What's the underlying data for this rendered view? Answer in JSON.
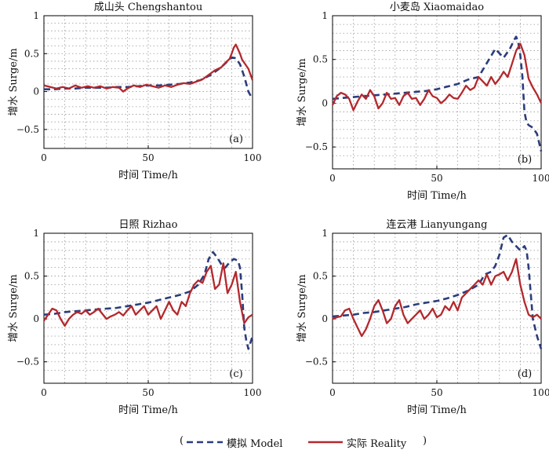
{
  "legend": {
    "open": "(",
    "close": ")",
    "model_label": "模拟 Model",
    "reality_label": "实际 Reality",
    "model_color": "#2b3d7c",
    "reality_color": "#b3282d"
  },
  "chart_data": [
    {
      "type": "line",
      "title": "成山头 Chengshantou",
      "panel_label": "(a)",
      "xlabel": "时间 Time/h",
      "ylabel": "增水 Surge/m",
      "xlim": [
        0,
        100
      ],
      "ylim": [
        -0.75,
        1.0
      ],
      "xticks": [
        0,
        50,
        100
      ],
      "yticks": [
        1,
        0.5,
        0,
        -0.5
      ],
      "ytick_labels": [
        "1",
        "0.5",
        "0",
        "−0.5"
      ],
      "series": [
        {
          "name": "模拟 Model",
          "x": [
            0,
            5,
            10,
            15,
            20,
            25,
            30,
            35,
            40,
            45,
            50,
            55,
            60,
            65,
            70,
            75,
            80,
            85,
            88,
            90,
            92,
            94,
            96,
            98,
            100
          ],
          "y": [
            0.03,
            0.03,
            0.04,
            0.04,
            0.05,
            0.05,
            0.05,
            0.06,
            0.06,
            0.07,
            0.08,
            0.08,
            0.09,
            0.1,
            0.12,
            0.15,
            0.22,
            0.32,
            0.4,
            0.45,
            0.44,
            0.36,
            0.2,
            0.0,
            -0.1
          ]
        },
        {
          "name": "实际 Reality",
          "x": [
            0,
            3,
            6,
            9,
            12,
            15,
            18,
            21,
            24,
            27,
            30,
            33,
            36,
            38,
            40,
            43,
            46,
            49,
            52,
            55,
            58,
            61,
            64,
            67,
            70,
            73,
            76,
            79,
            82,
            85,
            87,
            89,
            90,
            91,
            92,
            93,
            94,
            95,
            96,
            98,
            100
          ],
          "y": [
            0.08,
            0.06,
            0.04,
            0.06,
            0.04,
            0.08,
            0.05,
            0.07,
            0.05,
            0.07,
            0.04,
            0.06,
            0.05,
            0.0,
            0.04,
            0.08,
            0.06,
            0.09,
            0.07,
            0.05,
            0.08,
            0.06,
            0.09,
            0.11,
            0.1,
            0.13,
            0.16,
            0.22,
            0.28,
            0.32,
            0.38,
            0.43,
            0.5,
            0.58,
            0.62,
            0.56,
            0.5,
            0.42,
            0.38,
            0.3,
            0.15
          ]
        }
      ]
    },
    {
      "type": "line",
      "title": "小麦岛 Xiaomaidao",
      "panel_label": "(b)",
      "xlabel": "时间 Time/h",
      "ylabel": "增水 Surge/m",
      "xlim": [
        0,
        100
      ],
      "ylim": [
        -0.75,
        1.0
      ],
      "xticks": [
        0,
        50,
        100
      ],
      "yticks": [
        1,
        0.5,
        0,
        -0.5
      ],
      "ytick_labels": [
        "1",
        "0.5",
        "0",
        "−0.5"
      ],
      "series": [
        {
          "name": "模拟 Model",
          "x": [
            0,
            5,
            10,
            15,
            20,
            25,
            30,
            35,
            40,
            45,
            50,
            55,
            60,
            65,
            70,
            75,
            78,
            82,
            85,
            87,
            88,
            89,
            90,
            91,
            92,
            93,
            94,
            96,
            98,
            100
          ],
          "y": [
            0.05,
            0.06,
            0.07,
            0.08,
            0.09,
            0.1,
            0.11,
            0.12,
            0.13,
            0.14,
            0.16,
            0.19,
            0.22,
            0.27,
            0.3,
            0.5,
            0.62,
            0.52,
            0.62,
            0.72,
            0.76,
            0.7,
            0.55,
            0.3,
            -0.1,
            -0.22,
            -0.25,
            -0.28,
            -0.35,
            -0.55
          ]
        },
        {
          "name": "实际 Reality",
          "x": [
            0,
            2,
            4,
            6,
            8,
            10,
            12,
            14,
            16,
            18,
            20,
            22,
            24,
            26,
            28,
            30,
            32,
            34,
            36,
            38,
            40,
            42,
            44,
            46,
            48,
            50,
            52,
            54,
            56,
            58,
            60,
            62,
            64,
            66,
            68,
            70,
            72,
            74,
            76,
            78,
            80,
            82,
            84,
            86,
            88,
            90,
            92,
            94,
            96,
            98,
            100
          ],
          "y": [
            -0.02,
            0.08,
            0.12,
            0.1,
            0.05,
            -0.08,
            0.02,
            0.1,
            0.05,
            0.15,
            0.08,
            -0.06,
            0.0,
            0.12,
            0.05,
            0.06,
            -0.02,
            0.08,
            0.12,
            0.05,
            0.06,
            -0.02,
            0.05,
            0.15,
            0.08,
            0.06,
            0.0,
            0.04,
            0.1,
            0.06,
            0.05,
            0.12,
            0.2,
            0.15,
            0.18,
            0.3,
            0.25,
            0.2,
            0.3,
            0.22,
            0.28,
            0.36,
            0.3,
            0.45,
            0.6,
            0.68,
            0.55,
            0.28,
            0.18,
            0.1,
            0.0
          ]
        }
      ]
    },
    {
      "type": "line",
      "title": "日照 Rizhao",
      "panel_label": "(c)",
      "xlabel": "时间 Time/h",
      "ylabel": "增水 Surge/m",
      "xlim": [
        0,
        100
      ],
      "ylim": [
        -0.75,
        1.0
      ],
      "xticks": [
        0,
        50,
        100
      ],
      "yticks": [
        1,
        0.5,
        0,
        -0.5
      ],
      "ytick_labels": [
        "1",
        "0.5",
        "0",
        "−0.5"
      ],
      "series": [
        {
          "name": "模拟 Model",
          "x": [
            0,
            5,
            10,
            15,
            20,
            25,
            30,
            35,
            40,
            45,
            50,
            55,
            60,
            65,
            70,
            74,
            77,
            79,
            81,
            83,
            85,
            87,
            89,
            91,
            93,
            94,
            95,
            96,
            97,
            98,
            100
          ],
          "y": [
            0.05,
            0.06,
            0.08,
            0.09,
            0.1,
            0.11,
            0.12,
            0.13,
            0.15,
            0.17,
            0.19,
            0.22,
            0.25,
            0.28,
            0.32,
            0.4,
            0.52,
            0.7,
            0.78,
            0.72,
            0.64,
            0.6,
            0.66,
            0.7,
            0.68,
            0.6,
            0.3,
            -0.1,
            -0.25,
            -0.35,
            -0.2
          ]
        },
        {
          "name": "实际 Reality",
          "x": [
            0,
            2,
            4,
            6,
            8,
            10,
            12,
            14,
            16,
            18,
            20,
            22,
            24,
            26,
            28,
            30,
            32,
            34,
            36,
            38,
            40,
            42,
            44,
            46,
            48,
            50,
            52,
            54,
            56,
            58,
            60,
            62,
            64,
            66,
            68,
            70,
            72,
            74,
            76,
            78,
            80,
            82,
            84,
            86,
            88,
            90,
            92,
            94,
            96,
            98,
            100
          ],
          "y": [
            -0.02,
            0.05,
            0.12,
            0.1,
            0.0,
            -0.08,
            0.0,
            0.05,
            0.08,
            0.06,
            0.1,
            0.05,
            0.08,
            0.12,
            0.06,
            0.0,
            0.03,
            0.05,
            0.08,
            0.04,
            0.1,
            0.15,
            0.05,
            0.1,
            0.15,
            0.05,
            0.1,
            0.15,
            0.0,
            0.1,
            0.2,
            0.1,
            0.05,
            0.2,
            0.15,
            0.3,
            0.4,
            0.45,
            0.42,
            0.55,
            0.62,
            0.35,
            0.4,
            0.65,
            0.3,
            0.4,
            0.55,
            0.2,
            -0.05,
            0.02,
            0.05
          ]
        }
      ]
    },
    {
      "type": "line",
      "title": "连云港 Lianyungang",
      "panel_label": "(d)",
      "xlabel": "时间 Time/h",
      "ylabel": "增水 Surge/m",
      "xlim": [
        0,
        100
      ],
      "ylim": [
        -0.75,
        1.0
      ],
      "xticks": [
        0,
        50,
        100
      ],
      "yticks": [
        1,
        0.5,
        0,
        -0.5
      ],
      "ytick_labels": [
        "1",
        "0.5",
        "0",
        "−0.5"
      ],
      "series": [
        {
          "name": "模拟 Model",
          "x": [
            0,
            5,
            10,
            15,
            20,
            25,
            30,
            35,
            40,
            45,
            50,
            55,
            60,
            65,
            70,
            73,
            76,
            78,
            80,
            82,
            84,
            86,
            88,
            90,
            92,
            93,
            94,
            95,
            96,
            98,
            100
          ],
          "y": [
            0.03,
            0.04,
            0.05,
            0.07,
            0.08,
            0.1,
            0.12,
            0.14,
            0.17,
            0.19,
            0.21,
            0.24,
            0.28,
            0.33,
            0.4,
            0.52,
            0.55,
            0.62,
            0.75,
            0.95,
            0.98,
            0.9,
            0.85,
            0.8,
            0.85,
            0.8,
            0.6,
            0.3,
            0.0,
            -0.2,
            -0.35
          ]
        },
        {
          "name": "实际 Reality",
          "x": [
            0,
            2,
            4,
            6,
            8,
            10,
            12,
            14,
            16,
            18,
            20,
            22,
            24,
            26,
            28,
            30,
            32,
            34,
            36,
            38,
            40,
            42,
            44,
            46,
            48,
            50,
            52,
            54,
            56,
            58,
            60,
            62,
            64,
            66,
            68,
            70,
            72,
            74,
            76,
            78,
            80,
            82,
            84,
            86,
            88,
            90,
            92,
            94,
            96,
            98,
            100
          ],
          "y": [
            0.0,
            0.02,
            0.03,
            0.1,
            0.12,
            0.0,
            -0.1,
            -0.2,
            -0.12,
            0.0,
            0.15,
            0.22,
            0.1,
            -0.05,
            0.0,
            0.15,
            0.22,
            0.05,
            -0.05,
            0.0,
            0.05,
            0.1,
            0.0,
            0.05,
            0.12,
            0.02,
            0.05,
            0.15,
            0.1,
            0.2,
            0.1,
            0.25,
            0.3,
            0.35,
            0.4,
            0.45,
            0.4,
            0.52,
            0.4,
            0.5,
            0.52,
            0.55,
            0.45,
            0.55,
            0.7,
            0.4,
            0.2,
            0.05,
            0.02,
            0.05,
            0.0
          ]
        }
      ]
    }
  ]
}
